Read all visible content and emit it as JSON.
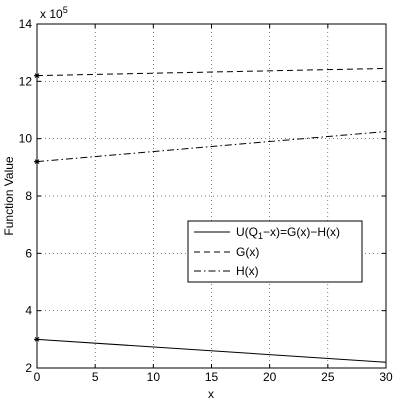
{
  "chart_data": {
    "type": "line",
    "xlabel": "x",
    "ylabel": "Function Value",
    "y_multiplier": "x 10",
    "y_exponent": "5",
    "xlim": [
      0,
      30
    ],
    "ylim": [
      2,
      14
    ],
    "xticks": [
      0,
      5,
      10,
      15,
      20,
      25,
      30
    ],
    "yticks": [
      2,
      4,
      6,
      8,
      10,
      12,
      14
    ],
    "grid": true,
    "legend_position": "center-right",
    "series": [
      {
        "name": "U(Q1−x)=G(x)−H(x)",
        "name_parts": {
          "pre": "U(Q",
          "sub": "1",
          "post": "−x)=G(x)−H(x)"
        },
        "style": "solid",
        "color": "#000000",
        "x": [
          0,
          30
        ],
        "y": [
          3.0,
          2.2
        ],
        "marker_at_start": true
      },
      {
        "name": "G(x)",
        "style": "dashed",
        "color": "#000000",
        "x": [
          0,
          30
        ],
        "y": [
          12.2,
          12.45
        ],
        "marker_at_start": true
      },
      {
        "name": "H(x)",
        "style": "dashdot",
        "color": "#000000",
        "x": [
          0,
          30
        ],
        "y": [
          9.2,
          10.25
        ],
        "marker_at_start": true
      }
    ]
  }
}
